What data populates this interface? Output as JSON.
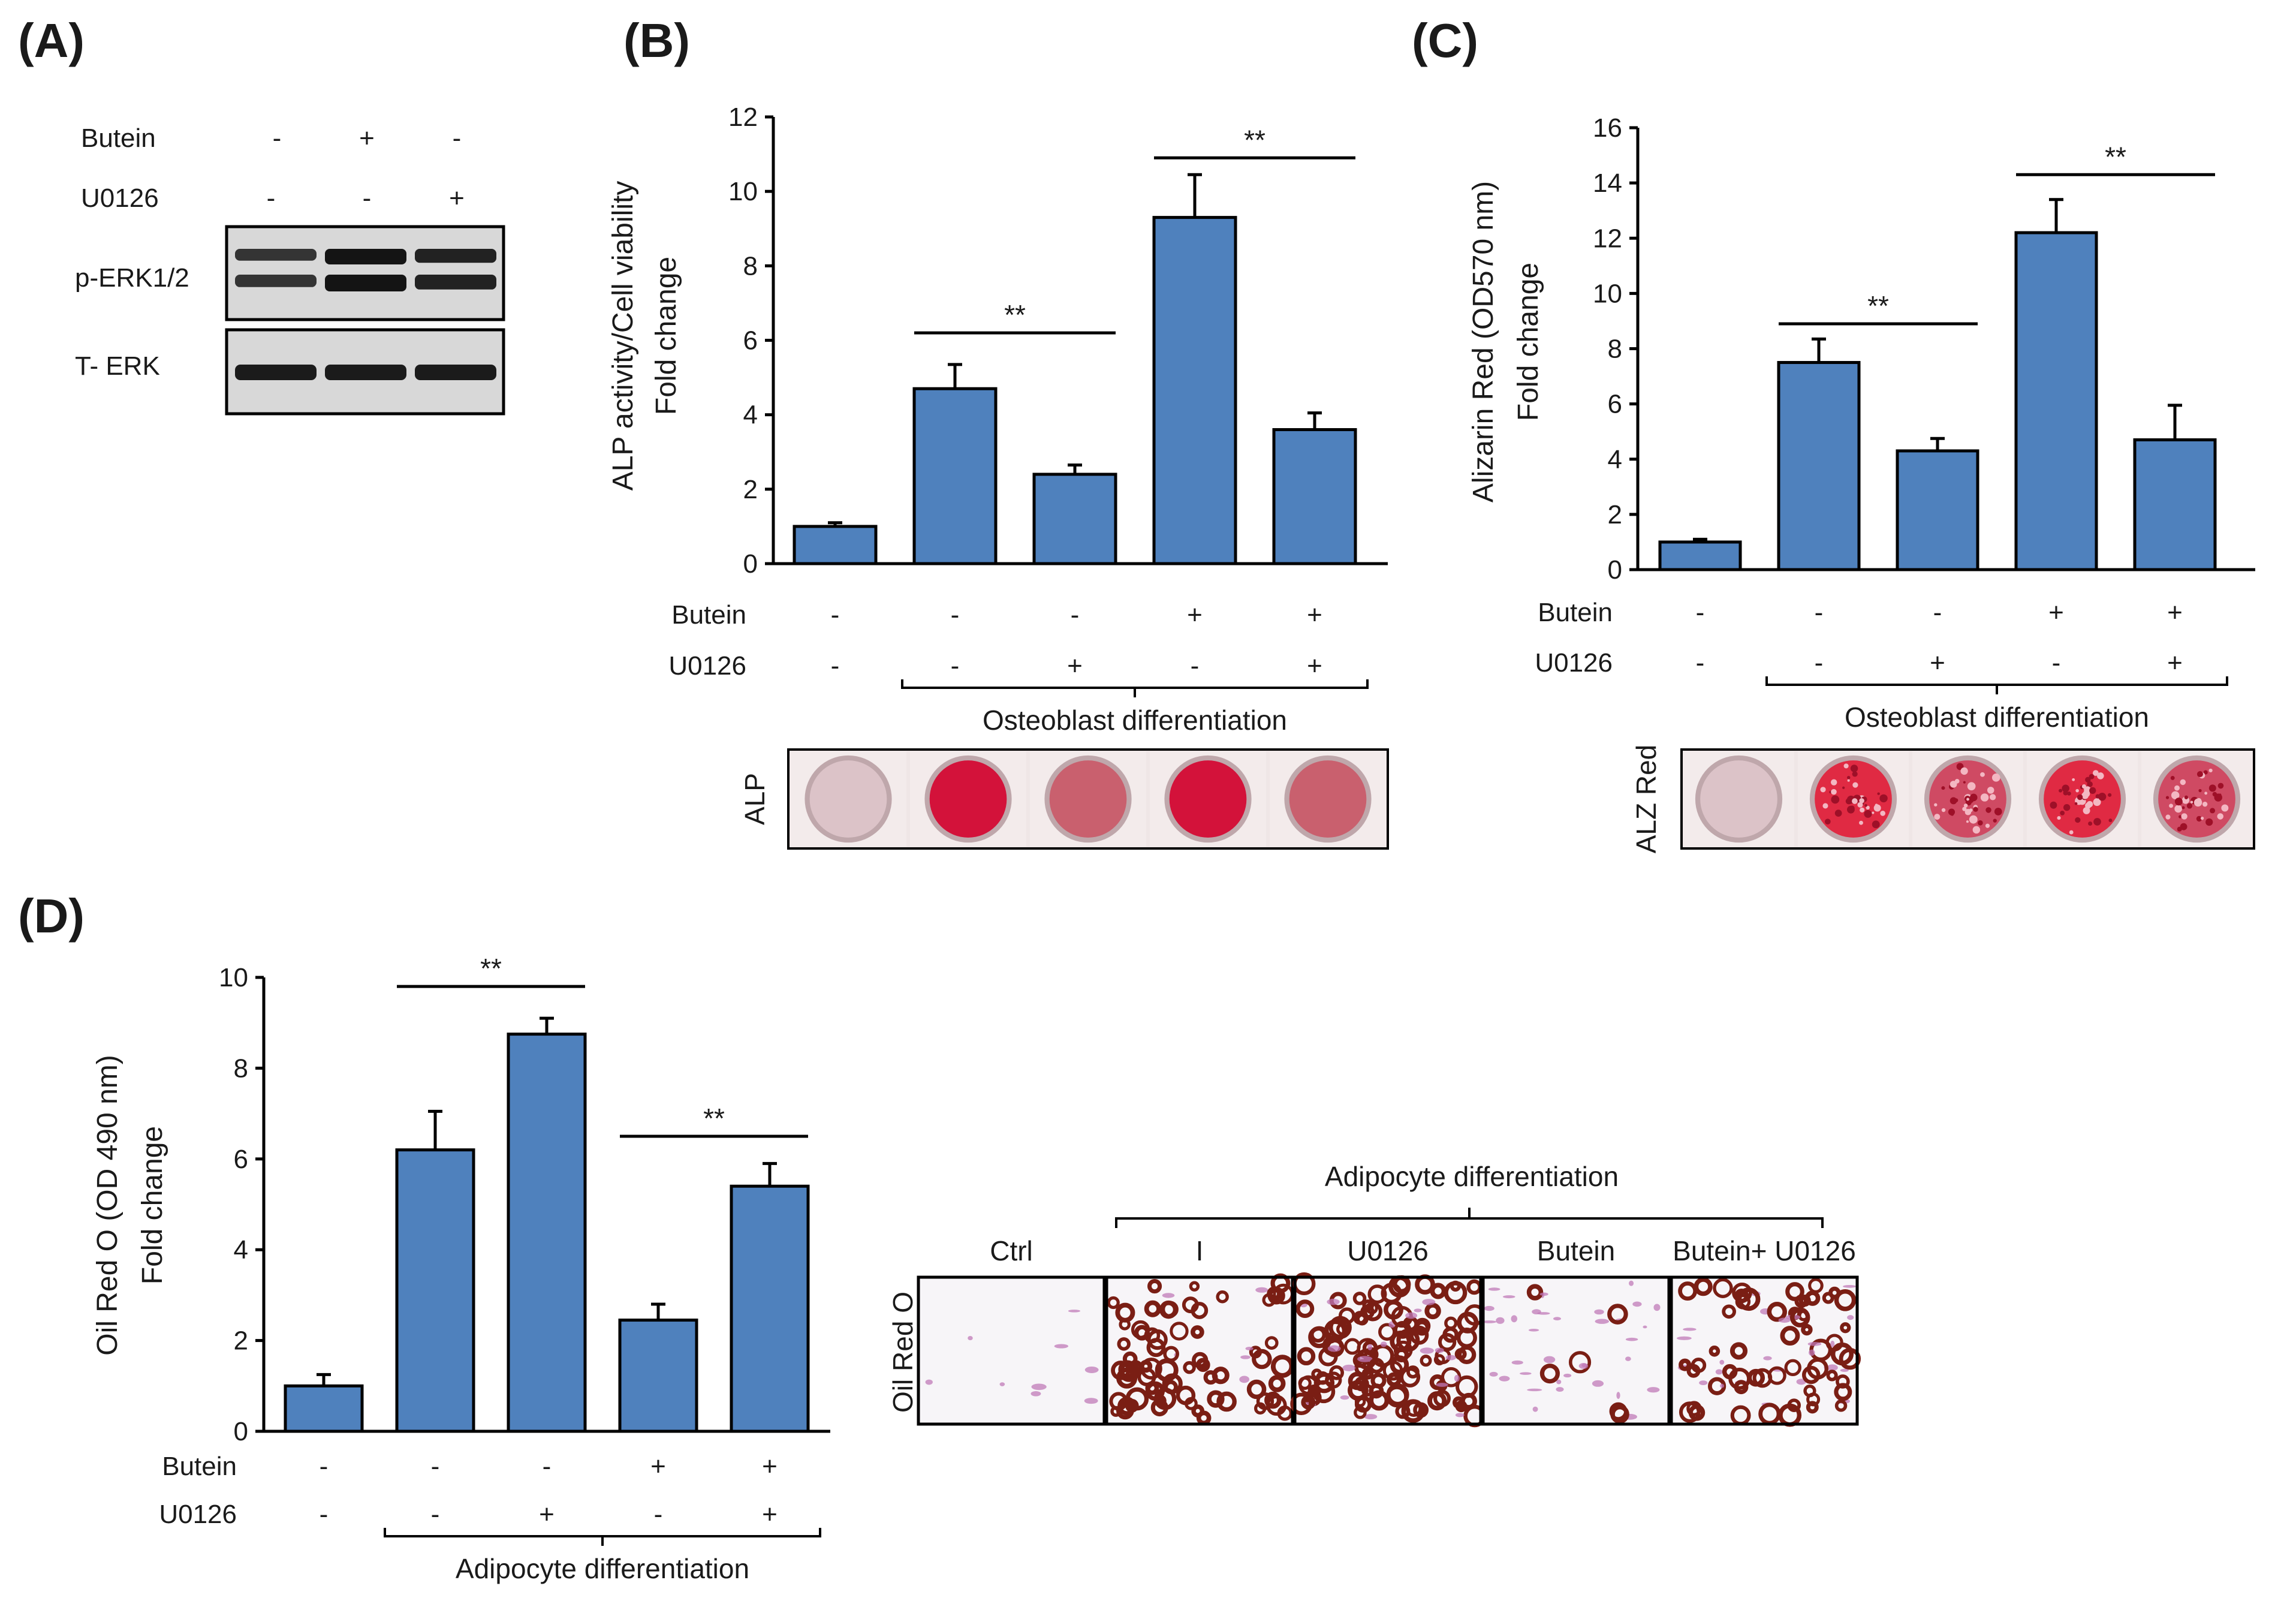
{
  "panel_labels": {
    "a": "(A)",
    "b": "(B)",
    "c": "(C)",
    "d": "(D)"
  },
  "colors": {
    "bar": "#4f81bd",
    "alp_well_strong": "#d3123a",
    "alp_well_weak": "#c9606e",
    "blank_well": "#dcc3c8",
    "alz_well_strong": "#e02a43",
    "oil_red_dark": "#7a1e14",
    "oil_red_light": "#c07ab8"
  },
  "western_blot": {
    "row_labels": [
      "Butein",
      "U0126"
    ],
    "signs": [
      [
        "-",
        "+",
        "-"
      ],
      [
        "-",
        "-",
        "+"
      ]
    ],
    "bands": [
      "p-ERK1/2",
      "T- ERK"
    ],
    "pERK_intensity": [
      0.55,
      1.0,
      0.8
    ],
    "tERK_intensity": [
      0.9,
      0.9,
      0.9
    ]
  },
  "chart_data": [
    {
      "type": "bar",
      "panel": "B",
      "ylabel_line1": "ALP activity/Cell viability",
      "ylabel_line2": "Fold change",
      "ylim": [
        0,
        12
      ],
      "yticks": [
        0,
        2,
        4,
        6,
        8,
        10,
        12
      ],
      "values": [
        1.0,
        4.7,
        2.4,
        9.3,
        3.6
      ],
      "errors": [
        0.1,
        0.65,
        0.25,
        1.15,
        0.45
      ],
      "row_labels": [
        "Butein",
        "U0126"
      ],
      "butein": [
        "-",
        "-",
        "-",
        "+",
        "+"
      ],
      "u0126": [
        "-",
        "-",
        "+",
        "-",
        "+"
      ],
      "significance": [
        {
          "from": 1,
          "to": 2,
          "label": "**",
          "y": 6.2
        },
        {
          "from": 3,
          "to": 4,
          "label": "**",
          "y": 10.9
        }
      ],
      "group_label": "Osteoblast differentiation",
      "stain_label": "ALP",
      "wells": [
        "blank",
        "strong",
        "weak",
        "strong",
        "weak"
      ]
    },
    {
      "type": "bar",
      "panel": "C",
      "ylabel_line1": "Alizarin Red (OD570 nm)",
      "ylabel_line2": "Fold change",
      "ylim": [
        0,
        16
      ],
      "yticks": [
        0,
        2,
        4,
        6,
        8,
        10,
        12,
        14,
        16
      ],
      "values": [
        1.0,
        7.5,
        4.3,
        12.2,
        4.7
      ],
      "errors": [
        0.1,
        0.85,
        0.45,
        1.2,
        1.25
      ],
      "row_labels": [
        "Butein",
        "U0126"
      ],
      "butein": [
        "-",
        "-",
        "-",
        "+",
        "+"
      ],
      "u0126": [
        "-",
        "-",
        "+",
        "-",
        "+"
      ],
      "significance": [
        {
          "from": 1,
          "to": 2,
          "label": "**",
          "y": 8.9
        },
        {
          "from": 3,
          "to": 4,
          "label": "**",
          "y": 14.3
        }
      ],
      "group_label": "Osteoblast differentiation",
      "stain_label": "ALZ Red",
      "wells": [
        "blank",
        "strong",
        "medium",
        "strong",
        "medium"
      ]
    },
    {
      "type": "bar",
      "panel": "D",
      "ylabel_line1": "Oil Red O (OD 490 nm)",
      "ylabel_line2": "Fold change",
      "ylim": [
        0,
        10
      ],
      "yticks": [
        0,
        2,
        4,
        6,
        8,
        10
      ],
      "values": [
        1.0,
        6.2,
        8.75,
        2.45,
        5.4
      ],
      "errors": [
        0.25,
        0.85,
        0.35,
        0.35,
        0.5
      ],
      "row_labels": [
        "Butein",
        "U0126"
      ],
      "butein": [
        "-",
        "-",
        "-",
        "+",
        "+"
      ],
      "u0126": [
        "-",
        "-",
        "+",
        "-",
        "+"
      ],
      "significance": [
        {
          "from": 1,
          "to": 2,
          "label": "**",
          "y": 9.8
        },
        {
          "from": 3,
          "to": 4,
          "label": "**",
          "y": 6.5
        }
      ],
      "group_label": "Adipocyte differentiation"
    }
  ],
  "oil_red_images": {
    "stain_label": "Oil Red O",
    "group_label": "Adipocyte differentiation",
    "columns": [
      "Ctrl",
      "I",
      "U0126",
      "Butein",
      "Butein+ U0126"
    ],
    "density": [
      0.04,
      0.55,
      0.95,
      0.3,
      0.6
    ],
    "dark_fraction": [
      0.0,
      0.85,
      0.9,
      0.15,
      0.75
    ]
  }
}
